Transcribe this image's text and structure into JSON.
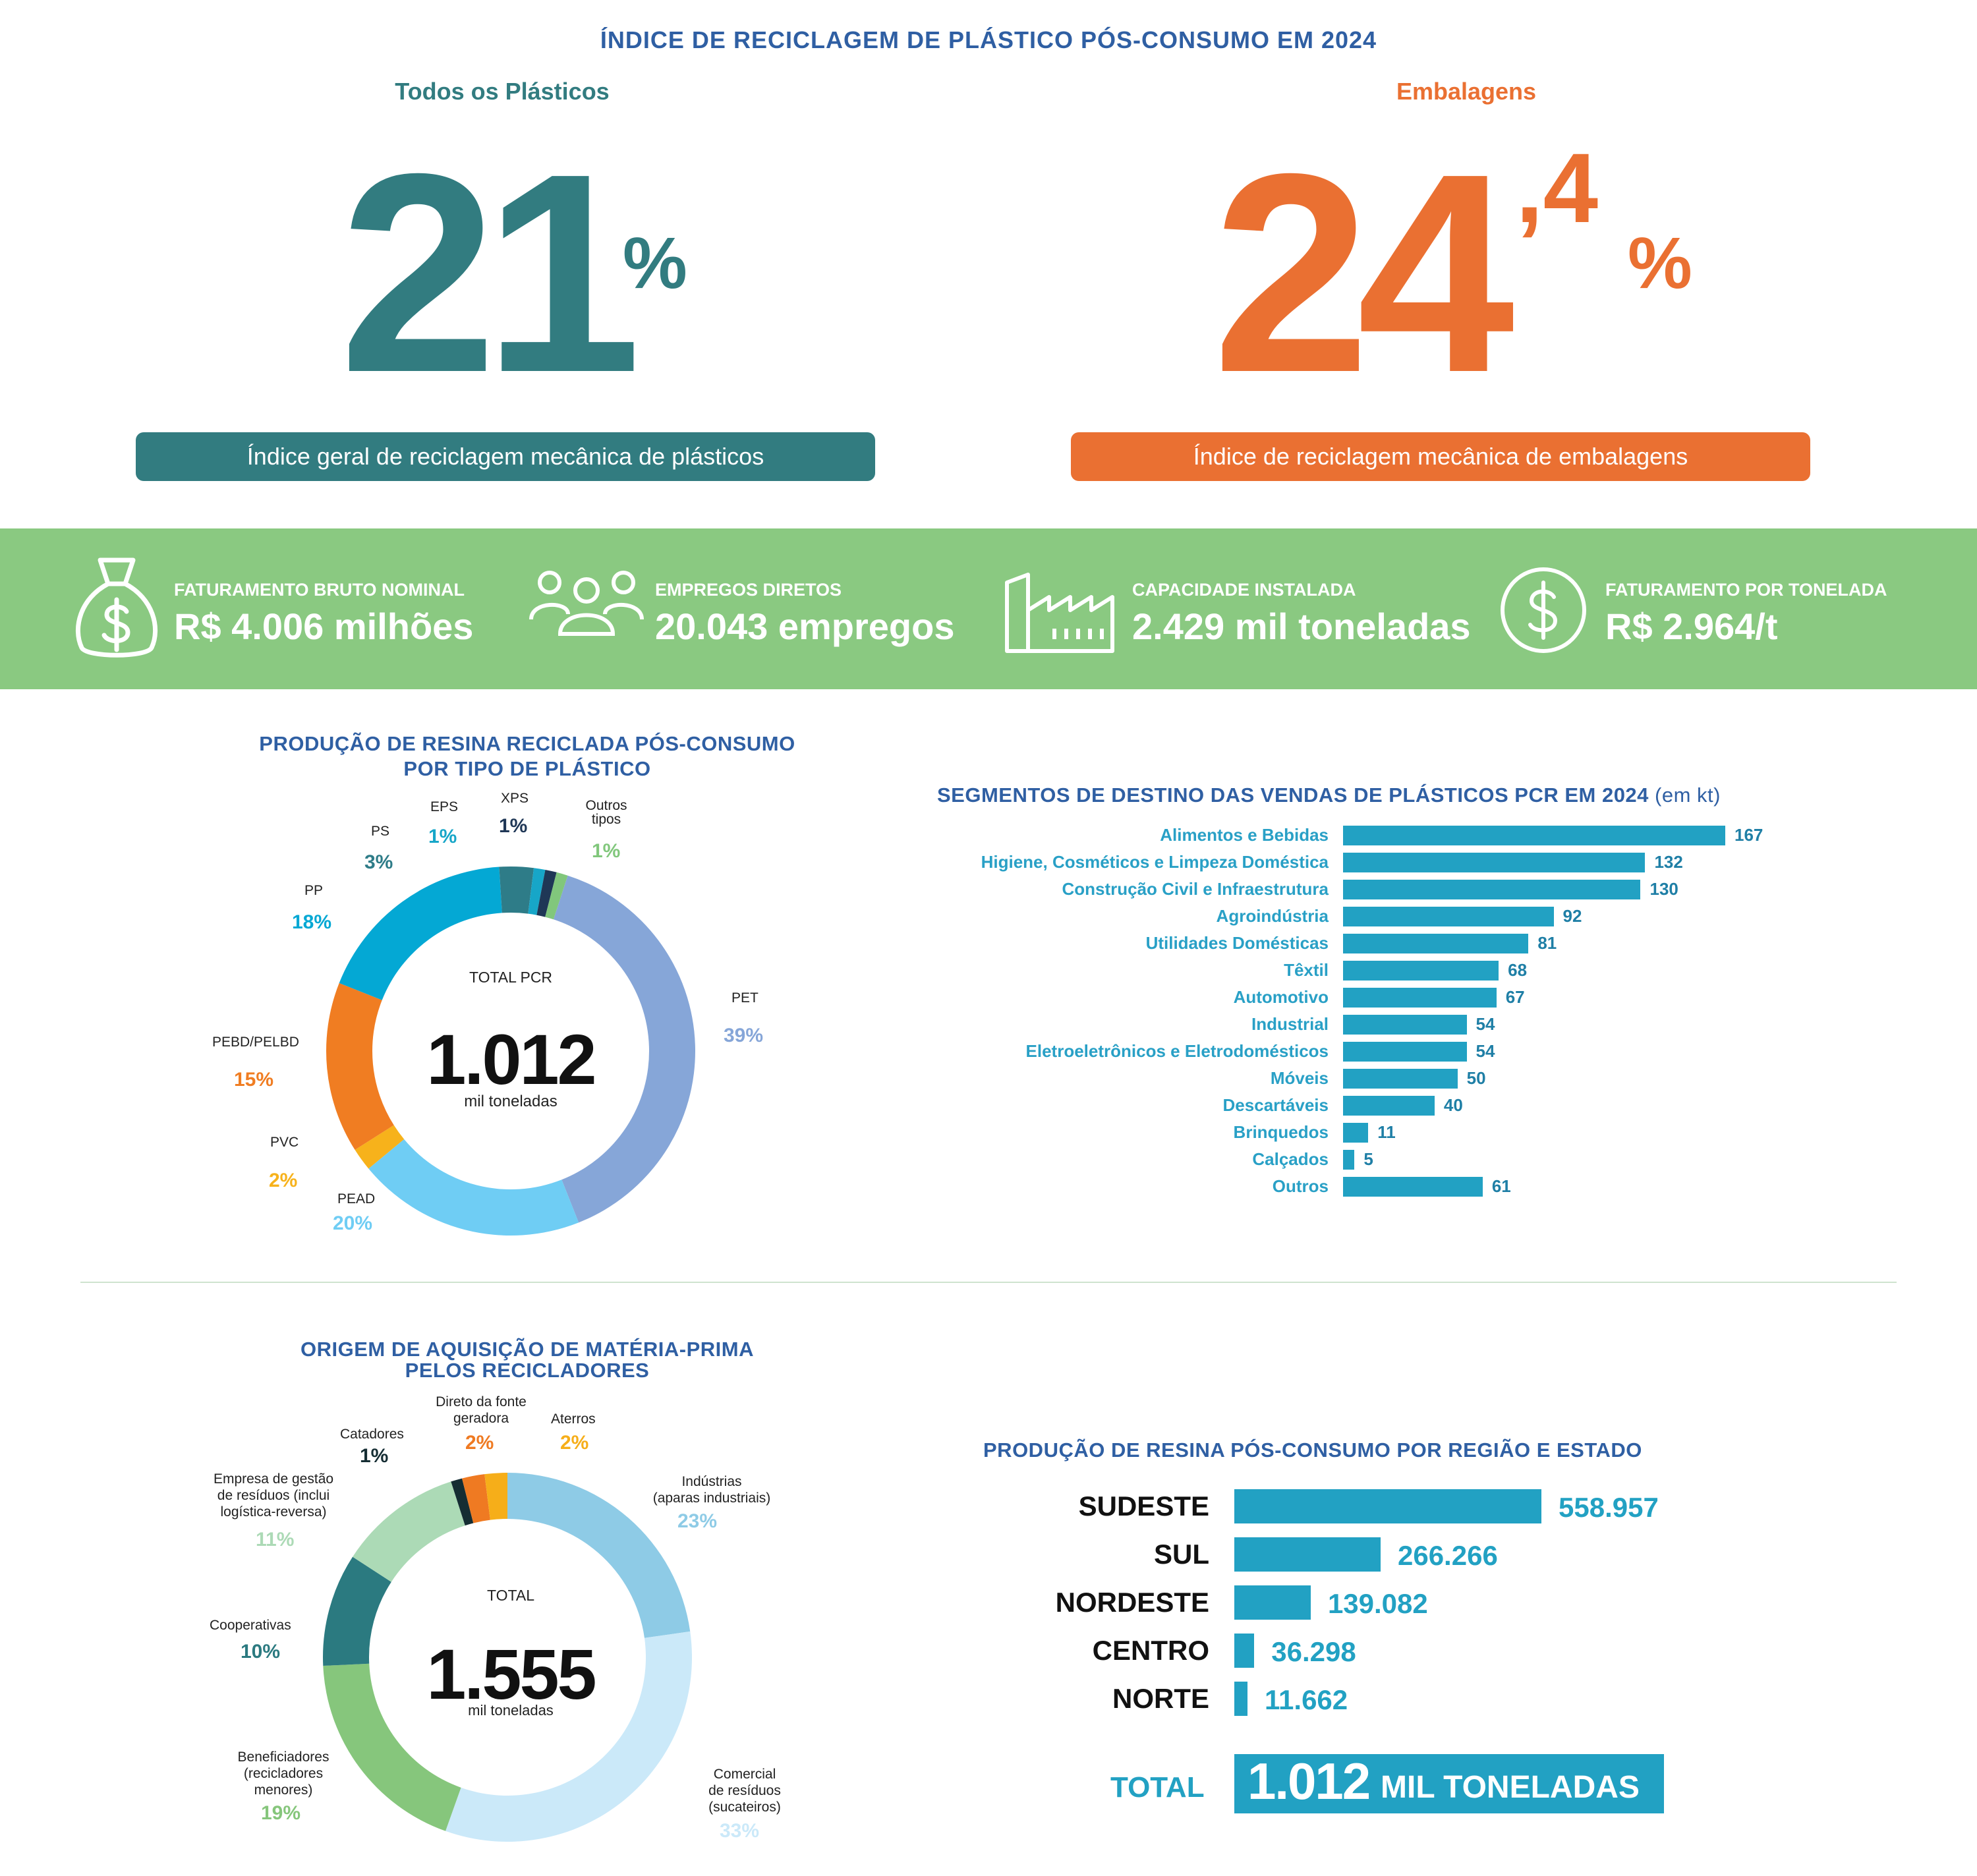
{
  "title": "ÍNDICE DE RECICLAGEM DE PLÁSTICO PÓS-CONSUMO EM 2024",
  "left_index": {
    "heading": "Todos os Plásticos",
    "number": "21",
    "percent": "%",
    "caption": "Índice geral de reciclagem mecânica de plásticos",
    "color": "#327c80"
  },
  "right_index": {
    "heading": "Embalagens",
    "number": "24",
    "decimal": ",4",
    "percent": "%",
    "caption": "Índice de reciclagem mecânica de embalagens",
    "color": "#ea7032"
  },
  "stats": [
    {
      "icon": "money-bag-icon",
      "label": "FATURAMENTO BRUTO NOMINAL",
      "value": "R$ 4.006 milhões"
    },
    {
      "icon": "people-group-icon",
      "label": "EMPREGOS DIRETOS",
      "value": "20.043 empregos"
    },
    {
      "icon": "factory-icon",
      "label": "CAPACIDADE INSTALADA",
      "value": "2.429 mil toneladas"
    },
    {
      "icon": "dollar-coin-icon",
      "label": "FATURAMENTO POR TONELADA",
      "value": "R$ 2.964/t"
    }
  ],
  "chart_data": [
    {
      "type": "pie",
      "title": "PRODUÇÃO DE RESINA RECICLADA PÓS-CONSUMO POR TIPO DE PLÁSTICO",
      "center_label": "TOTAL PCR",
      "center_value": "1.012",
      "center_unit": "mil toneladas",
      "slices": [
        {
          "name": "PET",
          "value": 39,
          "label": "39%",
          "color": "#86a6d8"
        },
        {
          "name": "PEAD",
          "value": 20,
          "label": "20%",
          "color": "#6fcdf4"
        },
        {
          "name": "PVC",
          "value": 2,
          "label": "2%",
          "color": "#f7b21b"
        },
        {
          "name": "PEBD/PELBD",
          "value": 15,
          "label": "15%",
          "color": "#f07d22"
        },
        {
          "name": "PP",
          "value": 18,
          "label": "18%",
          "color": "#04a8d4"
        },
        {
          "name": "PS",
          "value": 3,
          "label": "3%",
          "color": "#2e7c88"
        },
        {
          "name": "EPS",
          "value": 1,
          "label": "1%",
          "color": "#17a6c8"
        },
        {
          "name": "XPS",
          "value": 1,
          "label": "1%",
          "color": "#1f3756"
        },
        {
          "name": "Outros tipos",
          "value": 1,
          "label": "1%",
          "color": "#81c77c"
        }
      ]
    },
    {
      "type": "bar",
      "title": "SEGMENTOS DE DESTINO DAS VENDAS DE PLÁSTICOS PCR EM 2024",
      "unit_note": "(em kt)",
      "categories": [
        "Alimentos e Bebidas",
        "Higiene, Cosméticos e Limpeza Doméstica",
        "Construção Civil e Infraestrutura",
        "Agroindústria",
        "Utilidades Domésticas",
        "Têxtil",
        "Automotivo",
        "Industrial",
        "Eletroeletrônicos e Eletrodomésticos",
        "Móveis",
        "Descartáveis",
        "Brinquedos",
        "Calçados",
        "Outros"
      ],
      "values": [
        167,
        132,
        130,
        92,
        81,
        68,
        67,
        54,
        54,
        50,
        40,
        11,
        5,
        61
      ],
      "xlim": [
        0,
        167
      ]
    },
    {
      "type": "pie",
      "title": "ORIGEM DE AQUISIÇÃO DE MATÉRIA-PRIMA PELOS RECICLADORES",
      "center_label": "TOTAL",
      "center_value": "1.555",
      "center_unit": "mil toneladas",
      "slices": [
        {
          "name": "Indústrias (aparas industriais)",
          "value": 23,
          "label": "23%",
          "color": "#8ecbe6"
        },
        {
          "name": "Comercial de resíduos (sucateiros)",
          "value": 33,
          "label": "33%",
          "color": "#cbe9f9"
        },
        {
          "name": "Beneficiadores (recicladores menores)",
          "value": 19,
          "label": "19%",
          "color": "#86c67c"
        },
        {
          "name": "Cooperativas",
          "value": 10,
          "label": "10%",
          "color": "#2b7a80"
        },
        {
          "name": "Empresa de gestão de resíduos (inclui logística-reversa)",
          "value": 11,
          "label": "11%",
          "color": "#acdab6"
        },
        {
          "name": "Catadores",
          "value": 1,
          "label": "1%",
          "color": "#152d33"
        },
        {
          "name": "Direto da fonte geradora",
          "value": 2,
          "label": "2%",
          "color": "#ef7a22"
        },
        {
          "name": "Aterros",
          "value": 2,
          "label": "2%",
          "color": "#f6ae19"
        }
      ]
    },
    {
      "type": "bar",
      "title": "PRODUÇÃO DE RESINA PÓS-CONSUMO POR REGIÃO E ESTADO",
      "categories": [
        "SUDESTE",
        "SUL",
        "NORDESTE",
        "CENTRO",
        "NORTE"
      ],
      "values": [
        558957,
        266266,
        139082,
        36298,
        11662
      ],
      "value_labels": [
        "558.957",
        "266.266",
        "139.082",
        "36.298",
        "11.662"
      ],
      "xlim": [
        0,
        558957
      ],
      "total_label": "TOTAL",
      "total_number": "1.012",
      "total_unit": "MIL TONELADAS"
    }
  ],
  "donut1_labels": {
    "PET": {
      "name": "PET",
      "pct": "39%"
    },
    "PEAD": {
      "name": "PEAD",
      "pct": "20%"
    },
    "PVC": {
      "name": "PVC",
      "pct": "2%"
    },
    "PEBD": {
      "name": "PEBD/PELBD",
      "pct": "15%"
    },
    "PP": {
      "name": "PP",
      "pct": "18%"
    },
    "PS": {
      "name": "PS",
      "pct": "3%"
    },
    "EPS": {
      "name": "EPS",
      "pct": "1%"
    },
    "XPS": {
      "name": "XPS",
      "pct": "1%"
    },
    "OUT1": "Outros",
    "OUT2": "tipos",
    "OUTpct": "1%"
  },
  "donut2_labels": {
    "ind1": "Indústrias",
    "ind2": "(aparas industriais)",
    "indpct": "23%",
    "com1": "Comercial",
    "com2": "de resíduos",
    "com3": "(sucateiros)",
    "compct": "33%",
    "ben1": "Beneficiadores",
    "ben2": "(recicladores",
    "ben3": "menores)",
    "benpct": "19%",
    "coop": "Cooperativas",
    "cooppct": "10%",
    "emp1": "Empresa de gestão",
    "emp2": "de resíduos (inclui",
    "emp3": "logística-reversa)",
    "emppct": "11%",
    "cat": "Catadores",
    "catpct": "1%",
    "dir1": "Direto da fonte",
    "dir2": "geradora",
    "dirpct": "2%",
    "ate": "Aterros",
    "atepct": "2%"
  },
  "titles": {
    "donut1_l1": "PRODUÇÃO DE RESINA RECICLADA PÓS-CONSUMO",
    "donut1_l2": "POR TIPO DE PLÁSTICO",
    "donut2_l1": "ORIGEM DE AQUISIÇÃO DE MATÉRIA-PRIMA",
    "donut2_l2": "PELOS RECICLADORES",
    "seg": "SEGMENTOS DE DESTINO DAS VENDAS DE PLÁSTICOS PCR EM 2024",
    "seg_unit": "(em kt)",
    "reg": "PRODUÇÃO DE RESINA PÓS-CONSUMO POR REGIÃO E ESTADO"
  }
}
